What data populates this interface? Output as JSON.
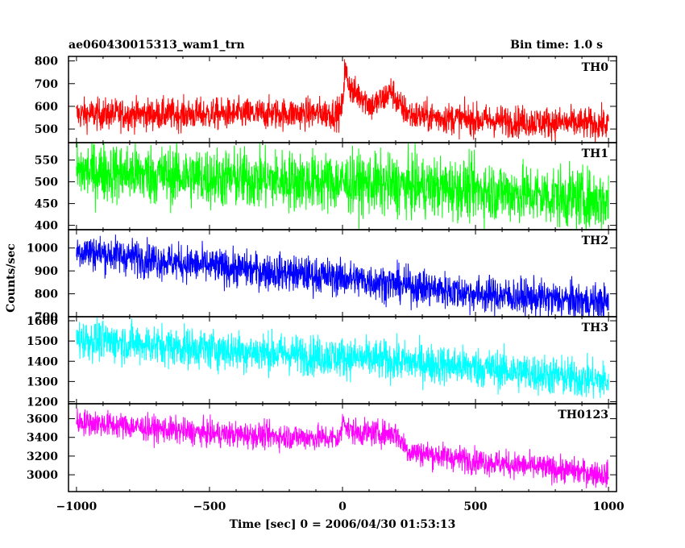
{
  "chart_data": {
    "type": "line",
    "header_left": "ae060430015313_wam1_trn",
    "header_right": "Bin time: 1.0 s",
    "xlabel": "Time [sec] 0 = 2006/04/30 01:53:13",
    "ylabel": "Counts/sec",
    "xlim": [
      -1030,
      1030
    ],
    "x_ticks": [
      -1000,
      -500,
      0,
      500,
      1000
    ],
    "x_tick_labels": [
      "−1000",
      "−500",
      "0",
      "500",
      "1000"
    ],
    "x_range": [
      -1000,
      1000
    ],
    "bin_time": 1.0,
    "panels": [
      {
        "name": "TH0",
        "color": "#ff0000",
        "ylim": [
          440,
          820
        ],
        "y_ticks": [
          500,
          600,
          700,
          800
        ],
        "y_tick_labels": [
          "500",
          "600",
          "700",
          "800"
        ],
        "trend": [
          [
            -1000,
            565
          ],
          [
            -500,
            565
          ],
          [
            -10,
            570
          ],
          [
            0,
            600
          ],
          [
            8,
            760
          ],
          [
            25,
            700
          ],
          [
            40,
            660
          ],
          [
            70,
            650
          ],
          [
            110,
            600
          ],
          [
            150,
            630
          ],
          [
            185,
            670
          ],
          [
            215,
            600
          ],
          [
            260,
            560
          ],
          [
            500,
            540
          ],
          [
            1000,
            520
          ]
        ],
        "noise": 35
      },
      {
        "name": "TH1",
        "color": "#00ff00",
        "ylim": [
          390,
          590
        ],
        "y_ticks": [
          400,
          450,
          500,
          550
        ],
        "y_tick_labels": [
          "400",
          "450",
          "500",
          "550"
        ],
        "trend": [
          [
            -1000,
            525
          ],
          [
            -500,
            510
          ],
          [
            0,
            498
          ],
          [
            500,
            482
          ],
          [
            1000,
            455
          ]
        ],
        "noise": 35
      },
      {
        "name": "TH2",
        "color": "#0000ff",
        "ylim": [
          700,
          1080
        ],
        "y_ticks": [
          700,
          800,
          900,
          1000
        ],
        "y_tick_labels": [
          "700",
          "800",
          "900",
          "1000"
        ],
        "trend": [
          [
            -1000,
            990
          ],
          [
            -500,
            920
          ],
          [
            0,
            870
          ],
          [
            500,
            800
          ],
          [
            1000,
            760
          ]
        ],
        "noise": 40
      },
      {
        "name": "TH3",
        "color": "#00ffff",
        "ylim": [
          1190,
          1620
        ],
        "y_ticks": [
          1200,
          1300,
          1400,
          1500,
          1600
        ],
        "y_tick_labels": [
          "1200",
          "1300",
          "1400",
          "1500",
          "1600"
        ],
        "trend": [
          [
            -1000,
            1510
          ],
          [
            -500,
            1460
          ],
          [
            0,
            1420
          ],
          [
            500,
            1370
          ],
          [
            1000,
            1300
          ]
        ],
        "noise": 50
      },
      {
        "name": "TH0123",
        "color": "#ff00ff",
        "ylim": [
          2820,
          3760
        ],
        "y_ticks": [
          3000,
          3200,
          3400,
          3600
        ],
        "y_tick_labels": [
          "3000",
          "3200",
          "3400",
          "3600"
        ],
        "trend": [
          [
            -1000,
            3570
          ],
          [
            -500,
            3440
          ],
          [
            -10,
            3390
          ],
          [
            5,
            3620
          ],
          [
            20,
            3480
          ],
          [
            60,
            3450
          ],
          [
            200,
            3440
          ],
          [
            250,
            3250
          ],
          [
            500,
            3150
          ],
          [
            1000,
            3000
          ]
        ],
        "noise": 70
      }
    ]
  }
}
